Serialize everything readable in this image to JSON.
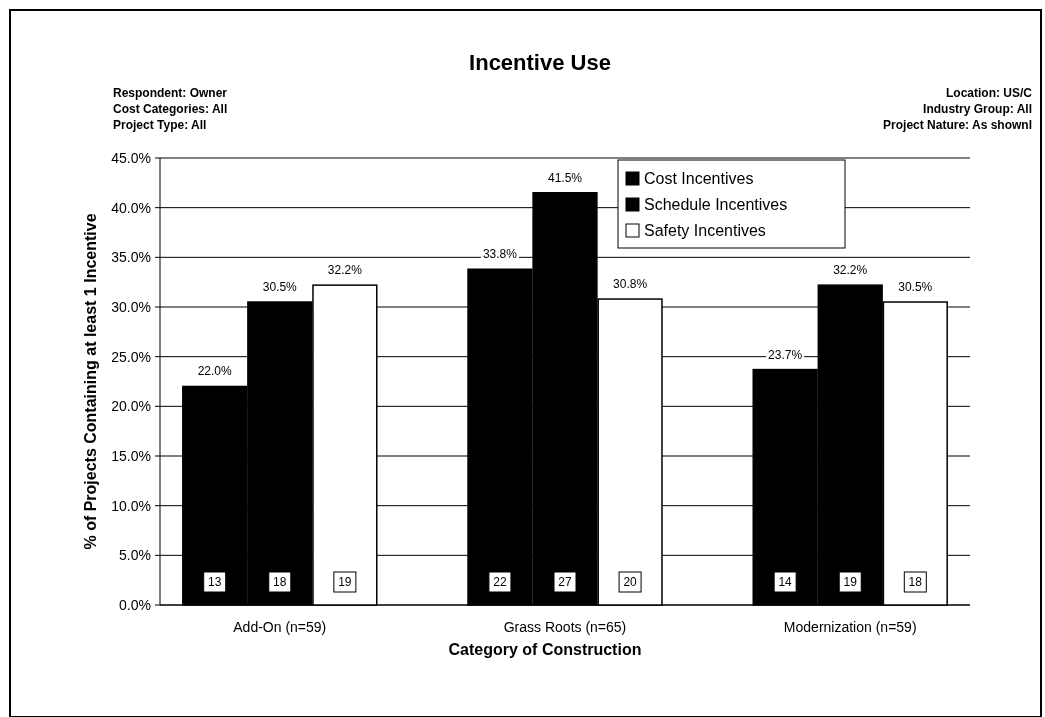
{
  "chart_data": {
    "type": "bar",
    "title": "Incentive Use",
    "annotations": [
      "Respondent: Owner",
      "Cost Categories: All",
      "Project Type: All",
      "Location: US/C",
      "Industry Group: All",
      "Project Nature: As shownl",
      "13",
      "18",
      "19",
      "22",
      "27",
      "20",
      "14",
      "19",
      "18"
    ],
    "xlabel": "Category of Construction",
    "ylabel": "% of Projects Containing at least 1 Incentive",
    "categories": [
      "Add-On (n=59)",
      "Grass Roots (n=65)",
      "Modernization (n=59)"
    ],
    "series": [
      {
        "name": "Cost Incentives",
        "color": "#000000",
        "values": [
          22.0,
          33.8,
          23.7
        ],
        "value_labels": [
          "22.0%",
          "33.8%",
          "23.7%"
        ]
      },
      {
        "name": "Schedule Incentives",
        "color": "#000000",
        "values": [
          30.5,
          41.5,
          32.2
        ],
        "value_labels": [
          "30.5%",
          "41.5%",
          "32.2%"
        ]
      },
      {
        "name": "Safety Incentives",
        "color": "#ffffff",
        "values": [
          32.2,
          30.8,
          30.5
        ],
        "value_labels": [
          "32.2%",
          "30.8%",
          "30.5%"
        ]
      }
    ],
    "ylim": [
      0,
      45
    ],
    "yticks": [
      {
        "value": 0,
        "label": "0.0%"
      },
      {
        "value": 5,
        "label": "5.0%"
      },
      {
        "value": 10,
        "label": "10.0%"
      },
      {
        "value": 15,
        "label": "15.0%"
      },
      {
        "value": 20,
        "label": "20.0%"
      },
      {
        "value": 25,
        "label": "25.0%"
      },
      {
        "value": 30,
        "label": "30.0%"
      },
      {
        "value": 35,
        "label": "35.0%"
      },
      {
        "value": 40,
        "label": "40.0%"
      },
      {
        "value": 45,
        "label": "45.0%"
      }
    ],
    "grid": "y",
    "legend": "top right"
  }
}
